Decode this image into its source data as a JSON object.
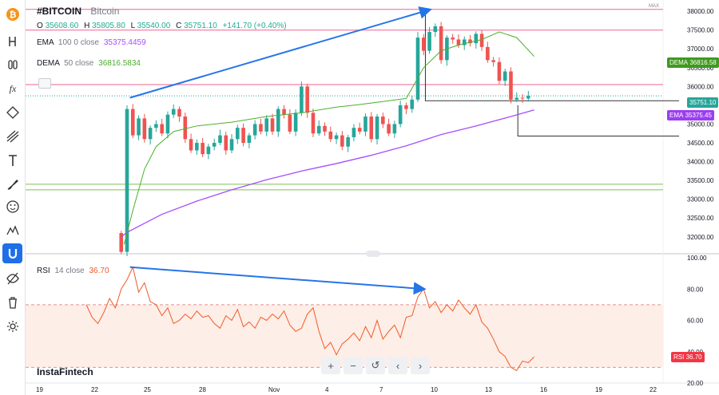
{
  "symbol": {
    "ticker": "#BITCOIN",
    "name": "Bitcoin"
  },
  "ohlc": {
    "o_label": "O",
    "o": "35608.60",
    "h_label": "H",
    "h": "35805.80",
    "l_label": "L",
    "l": "35540.00",
    "c_label": "C",
    "c": "35751.10",
    "change": "+141.70 (+0.40%)"
  },
  "indicators": {
    "ema": {
      "label": "EMA",
      "params": "100 0 close",
      "value": "35375.4459",
      "color": "#a64dff"
    },
    "dema": {
      "label": "DEMA",
      "params": "50 close",
      "value": "36816.5834",
      "color": "#4caf2e"
    },
    "rsi": {
      "label": "RSI",
      "params": "14 close",
      "value": "36.70",
      "color": "#f05a28"
    }
  },
  "price_tags": {
    "dema": {
      "label": "DEMA",
      "value": "36816.58",
      "color": "#3f9a1e"
    },
    "last": {
      "value": "35751.10",
      "color": "#26a69a"
    },
    "ema": {
      "label": "EMA",
      "value": "35375.45",
      "color": "#9c3df2"
    },
    "rsi": {
      "label": "RSI",
      "value": "36.70",
      "color": "#f23645"
    }
  },
  "max_label": "MAX",
  "price_axis_labels": [
    "38000.00",
    "37500.00",
    "37000.00",
    "36500.00",
    "36000.00",
    "35500.00",
    "35000.00",
    "34500.00",
    "34000.00",
    "33500.00",
    "33000.00",
    "32500.00",
    "32000.00"
  ],
  "rsi_axis_labels": [
    "100.00",
    "80.00",
    "60.00",
    "40.00",
    "20.00"
  ],
  "time_axis_labels": [
    "19",
    "22",
    "25",
    "28",
    "Nov",
    "4",
    "7",
    "10",
    "13",
    "16",
    "19",
    "22"
  ],
  "watermark": "InstaFintech",
  "nav_buttons": [
    {
      "name": "zoom-in-button",
      "icon": "plus-icon",
      "glyph": "+"
    },
    {
      "name": "zoom-out-button",
      "icon": "minus-icon",
      "glyph": "−"
    },
    {
      "name": "reset-button",
      "icon": "reset-icon",
      "glyph": "↺"
    },
    {
      "name": "scroll-left-button",
      "icon": "chevron-left-icon",
      "glyph": "‹"
    },
    {
      "name": "scroll-right-button",
      "icon": "chevron-right-icon",
      "glyph": "›"
    }
  ],
  "toolbar_tools": [
    "bitcoin-logo-icon",
    "h-icon",
    "bars-icon",
    "fx-icon",
    "node-icon",
    "trend-lines-icon",
    "text-icon",
    "brush-icon",
    "emoji-icon",
    "pattern-icon",
    "magnet-icon",
    "eye-off-icon",
    "trash-icon",
    "settings-icon"
  ],
  "chart_data": {
    "type": "candlestick",
    "price_range": [
      31550,
      38300
    ],
    "rsi_range": [
      20,
      100
    ],
    "ema100": [
      [
        -1,
        32000
      ],
      [
        0,
        32120
      ],
      [
        6,
        32600
      ],
      [
        12,
        32950
      ],
      [
        18,
        33250
      ],
      [
        24,
        33520
      ],
      [
        30,
        33750
      ],
      [
        36,
        33950
      ],
      [
        42,
        34170
      ],
      [
        48,
        34420
      ],
      [
        54,
        34720
      ],
      [
        60,
        34950
      ],
      [
        66,
        35200
      ],
      [
        70,
        35375
      ]
    ],
    "dema50": [
      [
        -0.5,
        31800
      ],
      [
        1,
        32700
      ],
      [
        3,
        33800
      ],
      [
        5,
        34400
      ],
      [
        8,
        34800
      ],
      [
        12,
        34950
      ],
      [
        18,
        35050
      ],
      [
        24,
        35200
      ],
      [
        30,
        35300
      ],
      [
        36,
        35450
      ],
      [
        40,
        35520
      ],
      [
        44,
        35600
      ],
      [
        48,
        35680
      ],
      [
        51,
        36500
      ],
      [
        54,
        36950
      ],
      [
        57,
        37100
      ],
      [
        61,
        37250
      ],
      [
        64,
        37450
      ],
      [
        67,
        37300
      ],
      [
        70,
        36800
      ]
    ],
    "rsi": [
      [
        -7,
        70
      ],
      [
        -6,
        62
      ],
      [
        -5,
        58
      ],
      [
        -4,
        65
      ],
      [
        -3,
        74
      ],
      [
        -2,
        68
      ],
      [
        -1,
        80
      ],
      [
        0,
        86
      ],
      [
        1,
        94
      ],
      [
        2,
        78
      ],
      [
        3,
        84
      ],
      [
        4,
        72
      ],
      [
        5,
        70
      ],
      [
        6,
        63
      ],
      [
        7,
        68
      ],
      [
        8,
        58
      ],
      [
        9,
        60
      ],
      [
        10,
        64
      ],
      [
        11,
        61
      ],
      [
        12,
        66
      ],
      [
        13,
        62
      ],
      [
        14,
        63
      ],
      [
        15,
        58
      ],
      [
        16,
        55
      ],
      [
        17,
        63
      ],
      [
        18,
        60
      ],
      [
        19,
        67
      ],
      [
        20,
        56
      ],
      [
        21,
        59
      ],
      [
        22,
        55
      ],
      [
        23,
        62
      ],
      [
        24,
        60
      ],
      [
        25,
        64
      ],
      [
        26,
        61
      ],
      [
        27,
        66
      ],
      [
        28,
        57
      ],
      [
        29,
        53
      ],
      [
        30,
        55
      ],
      [
        31,
        64
      ],
      [
        32,
        68
      ],
      [
        33,
        53
      ],
      [
        34,
        42
      ],
      [
        35,
        46
      ],
      [
        36,
        38
      ],
      [
        37,
        45
      ],
      [
        38,
        48
      ],
      [
        39,
        52
      ],
      [
        40,
        47
      ],
      [
        41,
        56
      ],
      [
        42,
        49
      ],
      [
        43,
        60
      ],
      [
        44,
        48
      ],
      [
        45,
        53
      ],
      [
        46,
        57
      ],
      [
        47,
        49
      ],
      [
        48,
        62
      ],
      [
        49,
        63
      ],
      [
        50,
        75
      ],
      [
        51,
        80
      ],
      [
        52,
        68
      ],
      [
        53,
        72
      ],
      [
        54,
        65
      ],
      [
        55,
        70
      ],
      [
        56,
        66
      ],
      [
        57,
        73
      ],
      [
        58,
        68
      ],
      [
        59,
        64
      ],
      [
        60,
        70
      ],
      [
        61,
        59
      ],
      [
        62,
        55
      ],
      [
        63,
        48
      ],
      [
        64,
        40
      ],
      [
        65,
        37
      ],
      [
        66,
        30
      ],
      [
        67,
        28
      ],
      [
        68,
        34
      ],
      [
        69,
        33
      ],
      [
        70,
        36.7
      ]
    ],
    "hlines_price": [
      38050,
      37500,
      36050,
      33400,
      33250
    ],
    "trend_arrows": [
      {
        "pane": "price",
        "from": [
          0.5,
          35700
        ],
        "to": [
          52.2,
          38050
        ]
      },
      {
        "pane": "rsi",
        "from": [
          0.5,
          94
        ],
        "to": [
          51.2,
          80
        ]
      }
    ],
    "series_last": {
      "close": 35751.1,
      "ema100": 35375.45,
      "dema50": 36816.58,
      "rsi": 36.7
    }
  }
}
